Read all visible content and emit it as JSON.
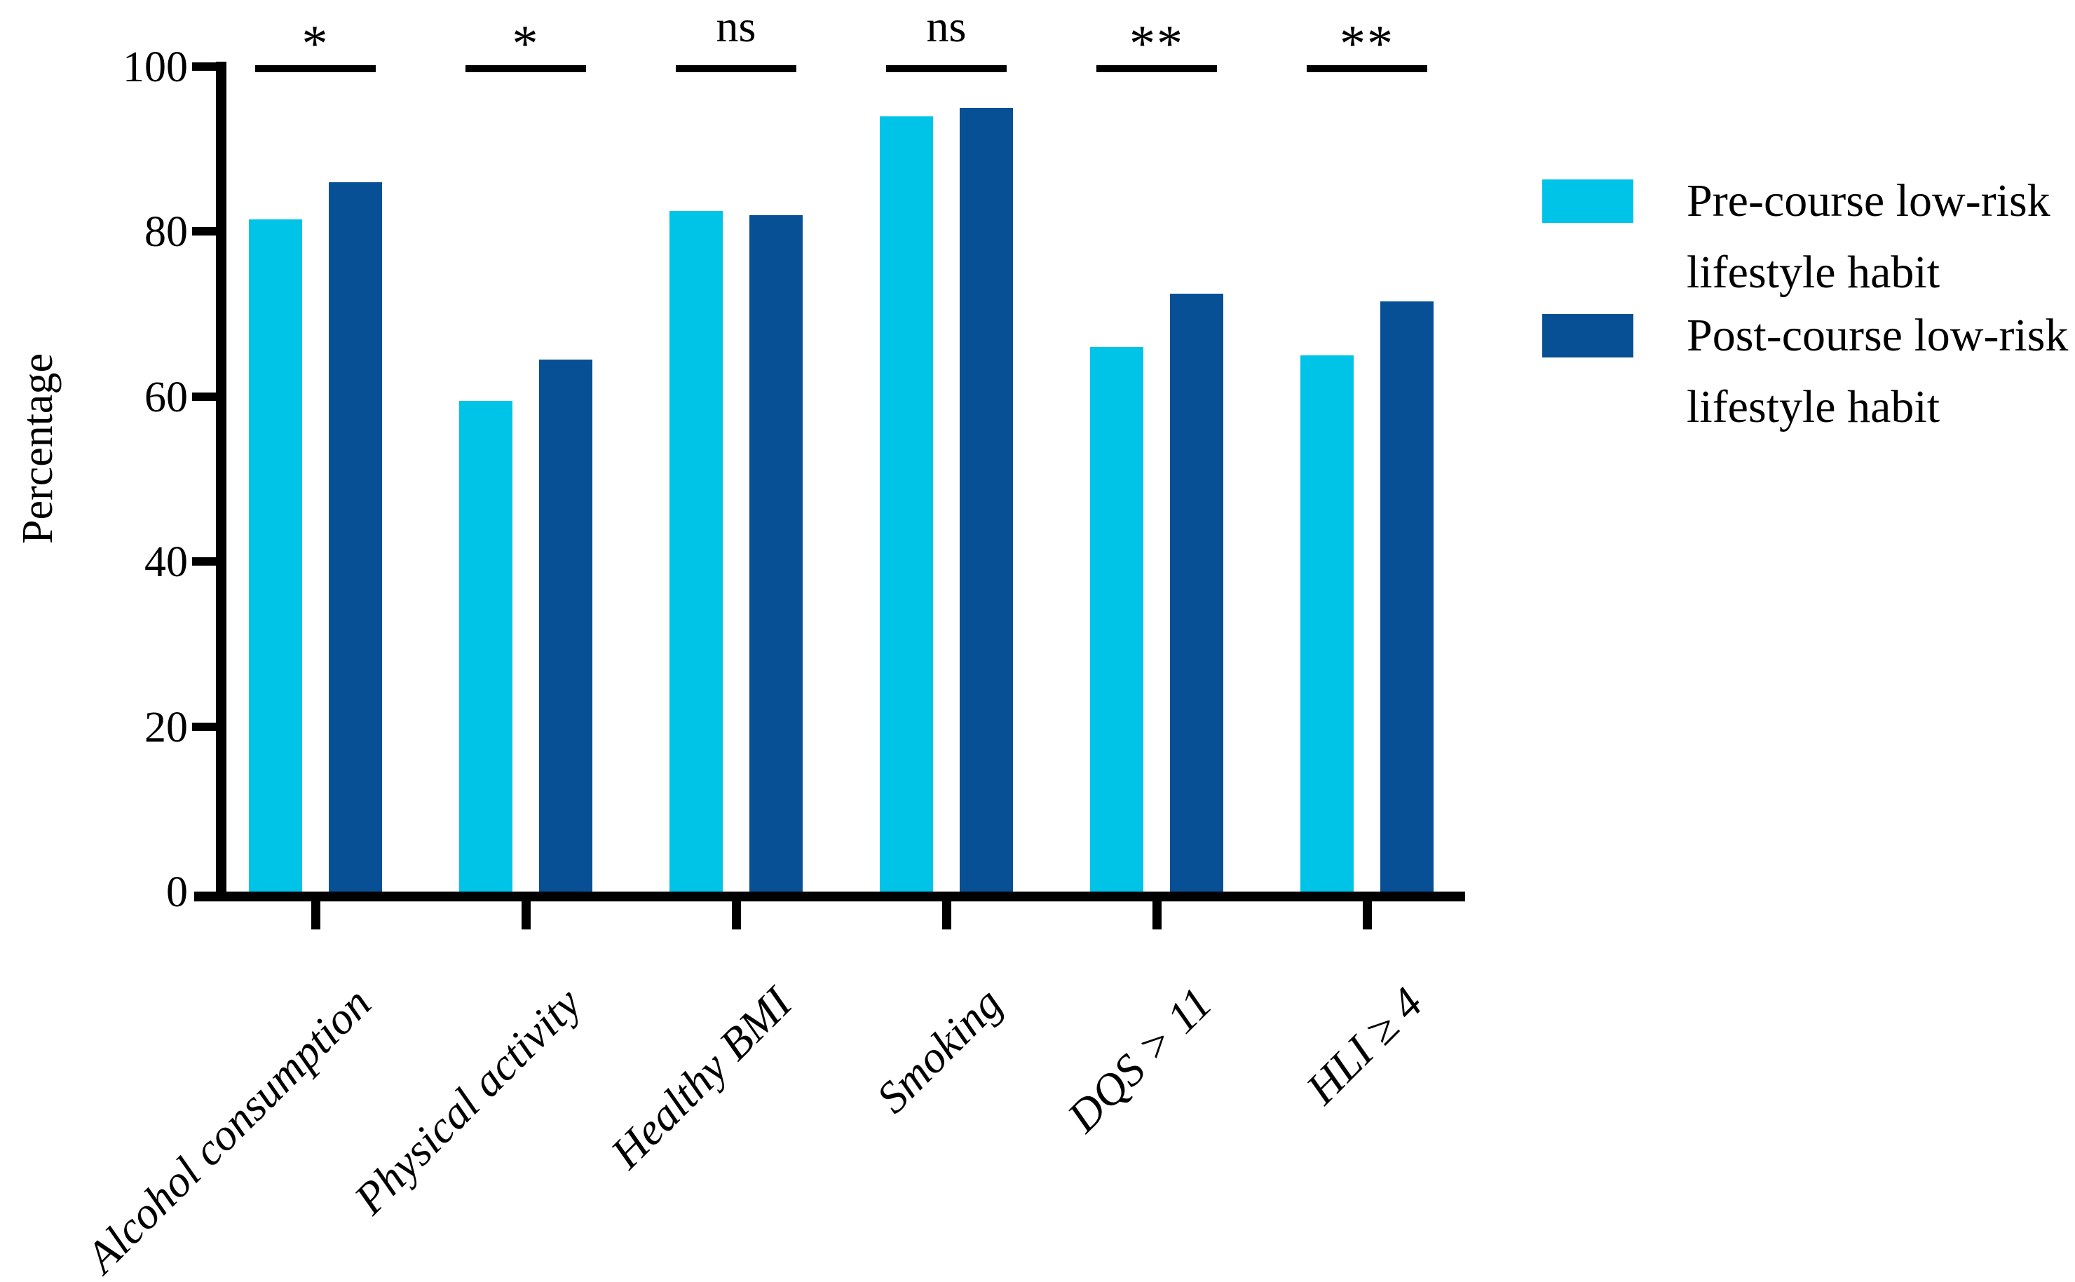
{
  "figure": {
    "y_axis_title": "Percentage",
    "legend": {
      "items": [
        {
          "label": "Pre-course low-risk lifestyle habit",
          "line1": "Pre-course low-risk",
          "line2": "lifestyle habit",
          "color": "#00C3E8"
        },
        {
          "label": "Post-course low-risk lifestyle habit",
          "line1": "Post-course low-risk",
          "line2": "lifestyle habit",
          "color": "#075095"
        }
      ]
    }
  },
  "chart_data": {
    "type": "bar",
    "title": "",
    "xlabel": "",
    "ylabel": "Percentage",
    "ylim": [
      0,
      100
    ],
    "yticks": [
      0,
      20,
      40,
      60,
      80,
      100
    ],
    "grid": false,
    "legend_position": "right",
    "categories": [
      "Alcohol consumption",
      "Physical activity",
      "Healthy BMI",
      "Smoking",
      "DQS > 11",
      "HLI ≥ 4"
    ],
    "series": [
      {
        "name": "Pre-course low-risk lifestyle habit",
        "color": "#00C3E8",
        "values": [
          81.5,
          59.5,
          82.5,
          94,
          66,
          65
        ]
      },
      {
        "name": "Post-course low-risk lifestyle habit",
        "color": "#075095",
        "values": [
          86,
          64.5,
          82,
          95,
          72.5,
          71.5
        ]
      }
    ],
    "significance": [
      "*",
      "*",
      "ns",
      "ns",
      "**",
      "**"
    ],
    "axis_color": "#000000"
  }
}
